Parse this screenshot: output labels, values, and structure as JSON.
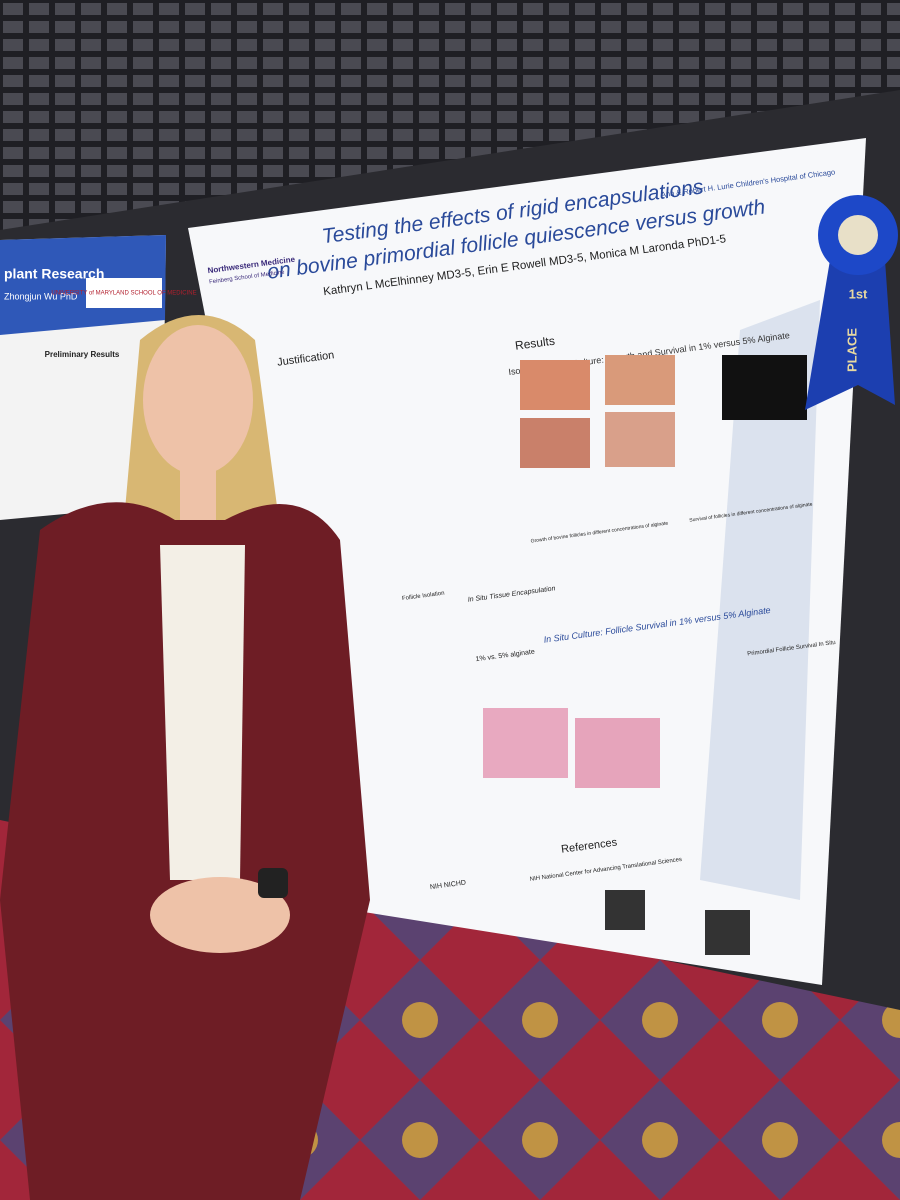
{
  "main_poster": {
    "title_lines": [
      "Testing the effects of rigid encapsulations",
      "on bovine primordial follicle quiescence versus growth"
    ],
    "authors": "Kathryn L McElhinney MD3-5, Erin E Rowell MD3-5, Monica M Laronda PhD1-5",
    "logos": {
      "left": "Northwestern Medicine",
      "left_sub": "Feinberg School of Medicine",
      "right": "Ann & Robert H. Lurie Children's Hospital of Chicago"
    },
    "sections": [
      "Justification",
      "Results",
      "References"
    ],
    "subsections": [
      "Isolated Follicle Culture: Growth and Survival in 1% versus 5% Alginate",
      "In Situ Culture: Follicle Survival in 1% versus 5% Alginate"
    ],
    "chart_titles": [
      "Growth of bovine follicles in different concentrations of alginate",
      "Survival of follicles in different concentrations of alginate",
      "Primordial Follicle Survival In Situ"
    ],
    "figure_labels": [
      "In Situ Tissue Encapsulation",
      "1% vs. 5% alginate",
      "Follicle Isolation"
    ],
    "funders": [
      "NIH NICHD",
      "NIH National Center for Advancing Translational Sciences"
    ]
  },
  "left_poster": {
    "title": "plant Research",
    "author": "Zhongjun Wu PhD",
    "section": "Preliminary Results",
    "logo": "UNIVERSITY of MARYLAND SCHOOL OF MEDICINE"
  },
  "ribbon": {
    "place": "1st",
    "text": "PLACE"
  }
}
